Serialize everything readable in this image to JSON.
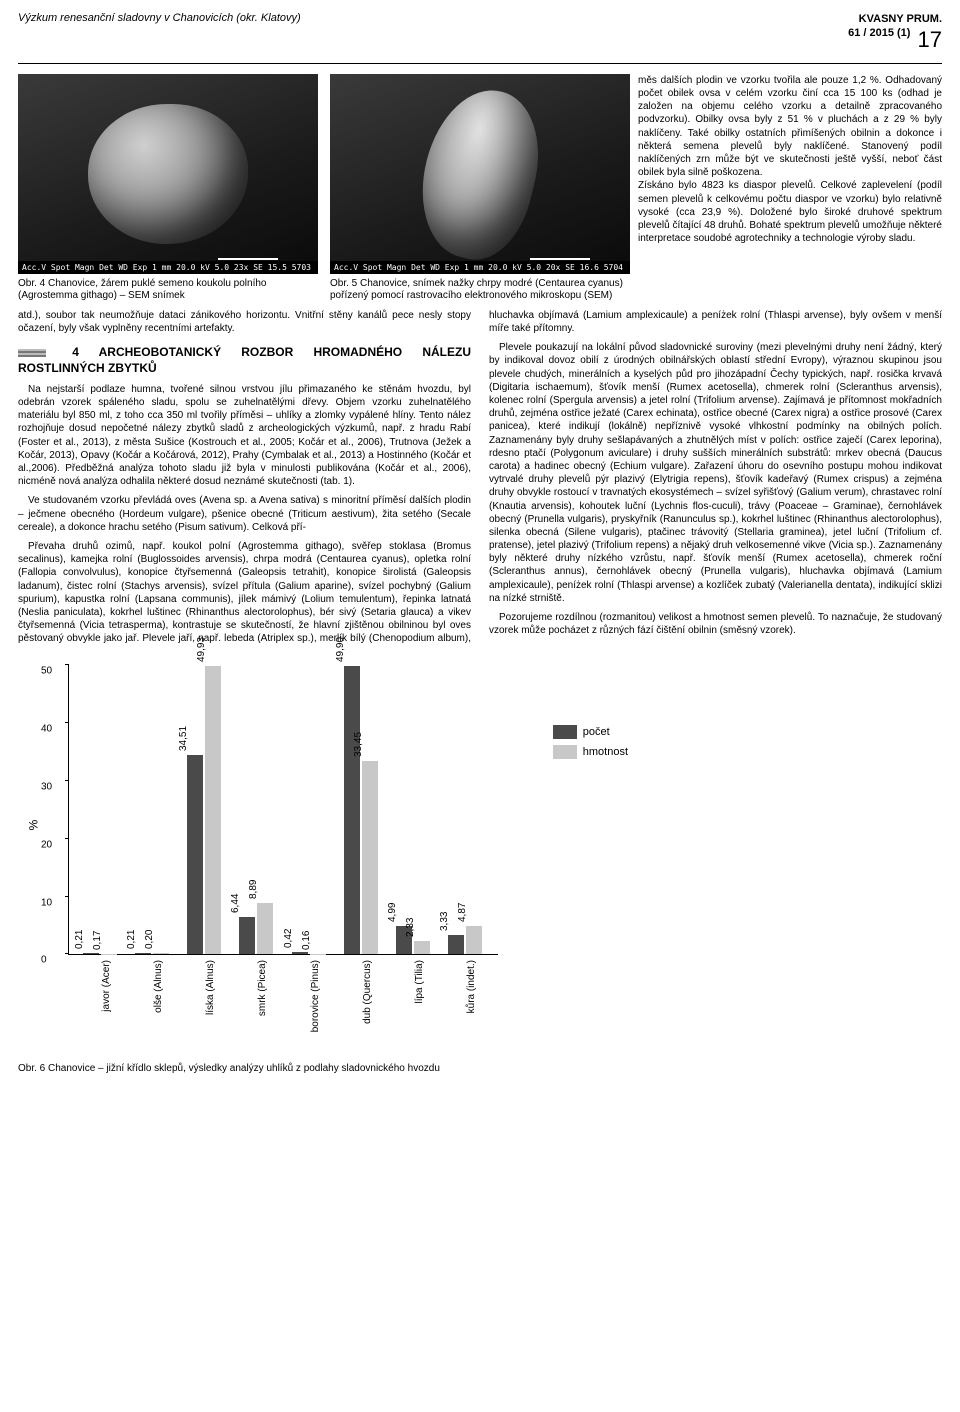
{
  "header": {
    "title_left": "Výzkum renesanční sladovny v Chanovicích (okr. Klatovy)",
    "journal": "KVASNY PRUM.",
    "volume": "61 / 2015 (1)",
    "page": "17"
  },
  "figures": {
    "sem1_footer": "Acc.V  Spot Magn   Det  WD  Exp                 1 mm\n20.0 kV 5.0  23x    SE   15.5 5703",
    "sem2_footer": "Acc.V  Spot Magn   Det  WD  Exp                 1 mm\n20.0 kV 5.0  20x    SE   16.6 5704",
    "caption1": "Obr. 4 Chanovice, žárem puklé semeno koukolu polního (Agrostemma githago) – SEM snímek",
    "caption2": "Obr. 5 Chanovice, snímek nažky chrpy modré (Centaurea cyanus) pořízený pomocí rastrovacího elektronového mikroskopu (SEM)"
  },
  "text": {
    "right_intro": "měs dalších plodin ve vzorku tvořila ale pouze 1,2 %. Odhadovaný počet obilek ovsa v celém vzorku činí cca 15 100 ks (odhad je založen na objemu celého vzorku a detailně zpracovaného podvzorku). Obilky ovsa byly z 51 % v pluchách a z 29 % byly naklíčeny. Také obilky ostatních přimíšených obilnin a dokonce i některá semena plevelů byly naklíčené. Stanovený podíl naklíčených zrn může být ve skutečnosti ještě vyšší, neboť část obilek byla silně poškozena.",
    "right_p2": "Získáno bylo 4823 ks diaspor plevelů. Celkové zaplevelení (podíl semen plevelů k celkovému počtu diaspor ve vzorku) bylo relativně vysoké (cca 23,9 %). Doložené bylo široké druhové spektrum plevelů čítající 48 druhů. Bohaté spektrum plevelů umožňuje některé interpretace soudobé agrotechniky a technologie výroby sladu.",
    "left_p1": "atd.), soubor tak neumožňuje dataci zánikového horizontu. Vnitřní stěny kanálů pece nesly stopy očazení, byly však vyplněny recentními artefakty.",
    "sec_heading": "4 ARCHEOBOTANICKÝ ROZBOR HROMADNÉHO NÁLEZU ROSTLINNÝCH ZBYTKŮ",
    "left_p2": "Na nejstarší podlaze humna, tvořené silnou vrstvou jílu přimazaného ke stěnám hvozdu, byl odebrán vzorek spáleného sladu, spolu se zuhelnatělými dřevy. Objem vzorku zuhelnatělého materiálu byl 850 ml, z toho cca 350 ml tvořily příměsi – uhlíky a zlomky vypálené hlíny. Tento nález rozhojňuje dosud nepočetné nálezy zbytků sladů z archeologických výzkumů, např. z hradu Rabí (Foster et al., 2013), z města Sušice (Kostrouch et al., 2005; Kočár et al., 2006), Trutnova (Ježek a Kočár, 2013), Opavy (Kočár a Kočárová, 2012), Prahy (Cymbalak et al., 2013) a Hostinného (Kočár et al.,2006). Předběžná analýza tohoto sladu již byla v minulosti publikována (Kočár et al., 2006), nicméně nová analýza odhalila některé dosud neznámé skutečnosti (tab. 1).",
    "left_p3": "Ve studovaném vzorku převládá oves (Avena sp. a Avena sativa) s minoritní příměsí dalších plodin – ječmene obecného (Hordeum vulgare), pšenice obecné (Triticum aestivum), žita setého (Secale cereale), a dokonce hrachu setého (Pisum sativum). Celková pří-",
    "col2_p1": "Převaha druhů ozimů, např. koukol polní (Agrostemma githago), svěřep stoklasa (Bromus secalinus), kamejka rolní (Buglossoides arvensis), chrpa modrá (Centaurea cyanus), opletka rolní (Fallopia convolvulus), konopice čtyřsemenná (Galeopsis tetrahit), konopice širolistá (Galeopsis ladanum), čistec rolní (Stachys arvensis), svízel přítula (Galium aparine), svízel pochybný (Galium spurium), kapustka rolní (Lapsana communis), jílek mámivý (Lolium temulentum), řepinka lаtnatá (Neslia paniculata), kokrhel luštinec (Rhinanthus alectorolophus), bér sivý (Setaria glauca) a vikev čtyřsemenná (Vicia tetrasperma), kontrastuje se skutečností, že hlavní zjištěnou obilninou byl oves pěstovaný obvykle jako jař. Plevele jaří, např. lebeda (Atriplex sp.), merlík bílý (Chenopodium album), hluchavka objímavá (Lamium amplexicaule) a peníżek rolní (Thlaspi arvense), byly ovšem v menší míře také přítomny.",
    "col2_p2": "Plevele poukazují na lokální původ sladovnické suroviny (mezi plevelnými druhy není žádný, který by indikoval dovoz obilí z úrodných obilnářských oblastí střední Evropy), výraznou skupinou jsou plevele chudých, minerálních a kyselých půd pro jihozápadní Čechy typických, např. rosička krvavá (Digitaria ischaemum), šťovík menší (Rumex acetosella), chmerek rolní (Scleranthus arvensis), kolenec rolní (Spergula arvensis) a jetel rolní (Trifolium arvense). Zajímavá je přítomnost mokřadních druhů, zejména ostřice ježaté (Carex echinata), ostřice obecné (Carex nigra) a ostřice prosové (Carex panicea), které indikují (lokálně) nepříznivě vysoké vlhkostní podmínky na obilných polích. Zaznamenány byly druhy sešlapávaných a zhutnělých míst v polích: ostřice zaječí (Carex leporina), rdesno ptačí (Polygonum aviculare) i druhy sušších minerálních substrátů: mrkev obecná (Daucus carota) a hadinec obecný (Echium vulgare). Zařаzení úhoru do osevního postupu mohou indikovat vytrvalé druhy plevelů pýr plazivý (Elytrigia repens), šťovík kadeřavý (Rumex crispus) a zejména druhy obvykle rostoucí v travnatých ekosystémech – svízel syřišťový (Galium verum), chrastavec rolní (Knautia arvensis), kohoutek luční (Lychnis flos-cuculi), trávy (Poaceae – Graminae), černohlávek obecný (Prunella vulgaris), pryskyřník (Ranunculus sp.), kokrhel luštinec (Rhinanthus alectorolophus), silenka obecná (Silene vulgaris), ptačinec trávovitý (Stellaria graminea), jetel luční (Trifolium cf. pratense), jetel plazivý (Trifolium repens) a nějaký druh velkosemenné vikve (Vicia sp.). Zaznamenány byly některé druhy nízkého vzrůstu, např. šťovík menší (Rumex acetosella), chmerek roční (Scleranthus annus), černohlávek obecný (Prunella vulgaris), hluchavka objímavá (Lamium amplexicaule), peníżek rolní (Thlaspi arvense) a kozlíček zubatý (Valerianella dentata), indikující sklizi na nízké strniště.",
    "col2_p3": "Pozorujeme rozdílnou (rozmanitou) velikost a hmotnost semen plevelů. To naznačuje, že studovaný vzorek může pocházet z různých fází čištění obilnin (směsný vzorek)."
  },
  "chart": {
    "type": "bar",
    "ylabel": "%",
    "ylim": [
      0,
      50
    ],
    "ytick_step": 10,
    "categories": [
      "javor (Acer)",
      "olše (Alnus)",
      "líska (Alnus)",
      "smrk (Picea)",
      "borovice (Pinus)",
      "dub (Quercus)",
      "lípa (Tilia)",
      "kůra (indet.)"
    ],
    "series": [
      {
        "name": "počet",
        "color": "#4a4a4a",
        "values": [
          0.21,
          0.21,
          34.51,
          6.44,
          0.42,
          49.9,
          4.99,
          3.33
        ]
      },
      {
        "name": "hmotnost",
        "color": "#c8c8c8",
        "values": [
          0.17,
          0.2,
          49.93,
          8.89,
          0.16,
          33.45,
          2.33,
          4.87
        ]
      }
    ],
    "value_labels": [
      [
        "0,21",
        "0,17"
      ],
      [
        "0,21",
        "0,20"
      ],
      [
        "34,51",
        "49,93"
      ],
      [
        "6,44",
        "8,89"
      ],
      [
        "0,42",
        "0,16"
      ],
      [
        "49,90",
        "33,45"
      ],
      [
        "4,99",
        "2,33"
      ],
      [
        "3,33",
        "4,87"
      ]
    ],
    "bar_dark": "#4a4a4a",
    "bar_light": "#c8c8c8",
    "caption": "Obr. 6 Chanovice – jižní křídlo sklepů, výsledky analýzy uhlíků z podlahy sladovnického hvozdu"
  }
}
